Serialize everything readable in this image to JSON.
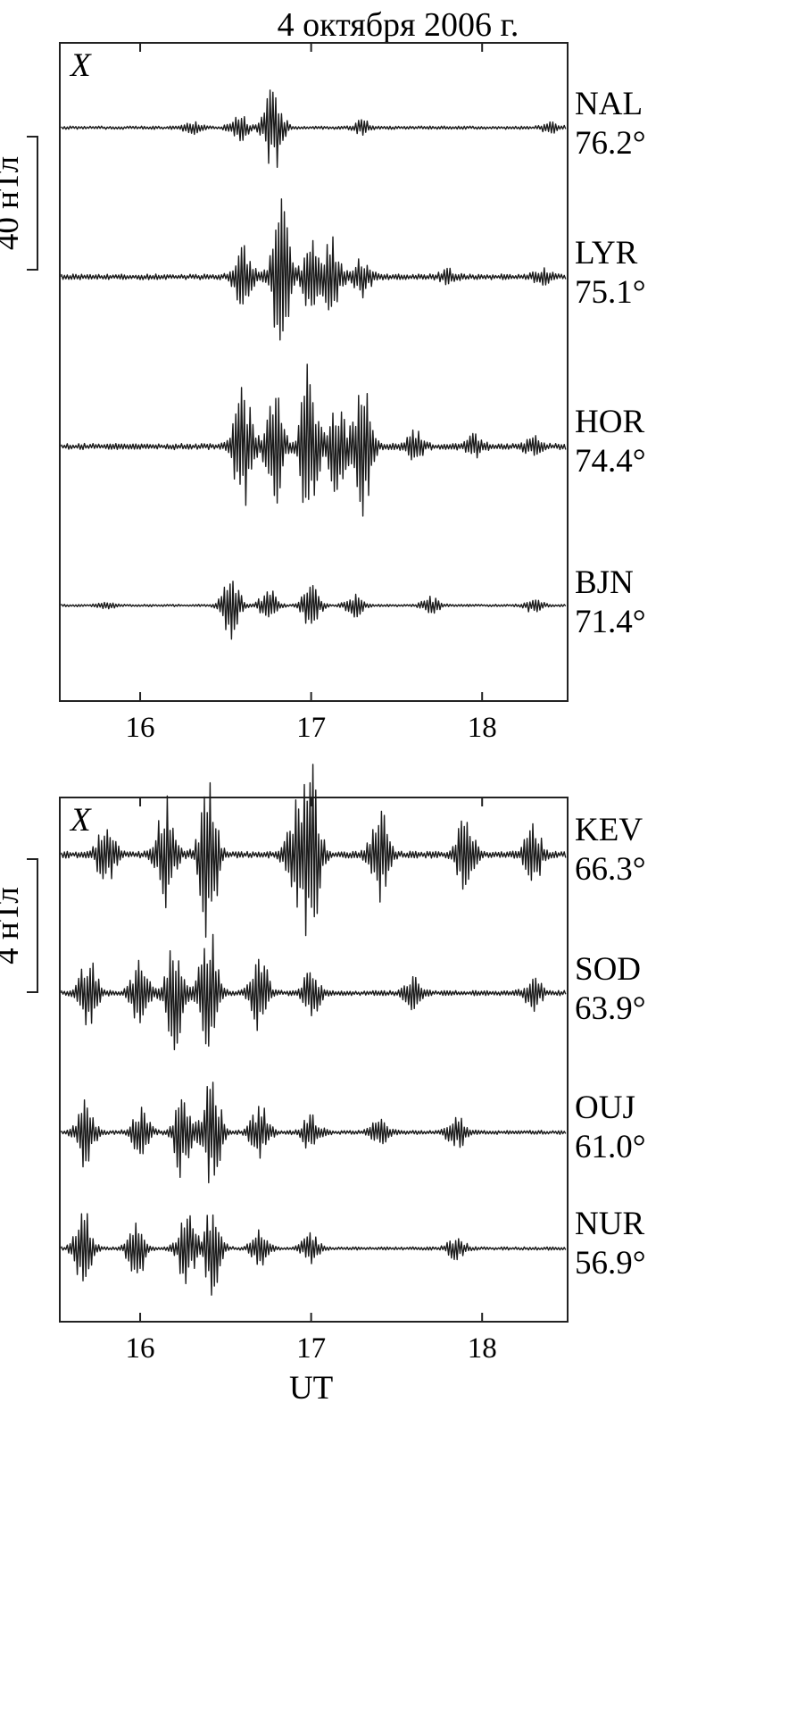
{
  "title": "4 октября 2006 г.",
  "colors": {
    "trace": "#1a1a1a",
    "frame": "#222222",
    "background": "#ffffff"
  },
  "chart_data": [
    {
      "type": "line",
      "component_label": "X",
      "scale_bar_label": "40 нТл",
      "scale_bar_value_nT": 40,
      "xlim": [
        15.53,
        18.5
      ],
      "xticks": [
        16,
        17,
        18
      ],
      "xtick_labels": [
        "16",
        "17",
        "18"
      ],
      "xlabel": "",
      "grid": false,
      "stations": [
        {
          "code": "NAL",
          "latitude": "76.2°",
          "bursts": [
            {
              "t": 16.78,
              "amp_nT": 28
            },
            {
              "t": 16.58,
              "amp_nT": 8
            },
            {
              "t": 16.3,
              "amp_nT": 4
            },
            {
              "t": 17.3,
              "amp_nT": 4
            },
            {
              "t": 18.4,
              "amp_nT": 3
            }
          ]
        },
        {
          "code": "LYR",
          "latitude": "75.1°",
          "bursts": [
            {
              "t": 16.82,
              "amp_nT": 48
            },
            {
              "t": 16.6,
              "amp_nT": 22
            },
            {
              "t": 17.0,
              "amp_nT": 22
            },
            {
              "t": 17.12,
              "amp_nT": 24
            },
            {
              "t": 17.3,
              "amp_nT": 12
            },
            {
              "t": 17.8,
              "amp_nT": 4
            },
            {
              "t": 18.35,
              "amp_nT": 4
            }
          ]
        },
        {
          "code": "HOR",
          "latitude": "74.4°",
          "bursts": [
            {
              "t": 16.6,
              "amp_nT": 40
            },
            {
              "t": 16.78,
              "amp_nT": 38
            },
            {
              "t": 16.99,
              "amp_nT": 52
            },
            {
              "t": 17.15,
              "amp_nT": 30
            },
            {
              "t": 17.3,
              "amp_nT": 42
            },
            {
              "t": 17.6,
              "amp_nT": 10
            },
            {
              "t": 17.95,
              "amp_nT": 6
            },
            {
              "t": 18.3,
              "amp_nT": 5
            }
          ]
        },
        {
          "code": "BJN",
          "latitude": "71.4°",
          "bursts": [
            {
              "t": 16.53,
              "amp_nT": 20
            },
            {
              "t": 16.75,
              "amp_nT": 10
            },
            {
              "t": 17.0,
              "amp_nT": 14
            },
            {
              "t": 17.25,
              "amp_nT": 7
            },
            {
              "t": 17.7,
              "amp_nT": 5
            },
            {
              "t": 18.3,
              "amp_nT": 4
            },
            {
              "t": 15.8,
              "amp_nT": 2
            }
          ]
        }
      ]
    },
    {
      "type": "line",
      "component_label": "X",
      "scale_bar_label": "4 нТл",
      "scale_bar_value_nT": 4,
      "xlim": [
        15.53,
        18.5
      ],
      "xticks": [
        16,
        17,
        18
      ],
      "xtick_labels": [
        "16",
        "17",
        "18"
      ],
      "xlabel": "UT",
      "grid": false,
      "stations": [
        {
          "code": "KEV",
          "latitude": "66.3°",
          "bursts": [
            {
              "t": 16.4,
              "amp_nT": 5.5
            },
            {
              "t": 16.15,
              "amp_nT": 3.5
            },
            {
              "t": 16.9,
              "amp_nT": 3.0
            },
            {
              "t": 17.0,
              "amp_nT": 6.0
            },
            {
              "t": 17.4,
              "amp_nT": 3.0
            },
            {
              "t": 17.9,
              "amp_nT": 2.5
            },
            {
              "t": 15.8,
              "amp_nT": 2.0
            },
            {
              "t": 18.3,
              "amp_nT": 2.0
            }
          ]
        },
        {
          "code": "SOD",
          "latitude": "63.9°",
          "bursts": [
            {
              "t": 16.4,
              "amp_nT": 4.5
            },
            {
              "t": 16.2,
              "amp_nT": 3.5
            },
            {
              "t": 15.7,
              "amp_nT": 2.5
            },
            {
              "t": 16.0,
              "amp_nT": 2.0
            },
            {
              "t": 16.7,
              "amp_nT": 2.5
            },
            {
              "t": 17.0,
              "amp_nT": 1.5
            },
            {
              "t": 17.6,
              "amp_nT": 1.0
            },
            {
              "t": 18.3,
              "amp_nT": 1.0
            }
          ]
        },
        {
          "code": "OUJ",
          "latitude": "61.0°",
          "bursts": [
            {
              "t": 16.42,
              "amp_nT": 3.6
            },
            {
              "t": 16.25,
              "amp_nT": 3.0
            },
            {
              "t": 15.68,
              "amp_nT": 2.2
            },
            {
              "t": 16.0,
              "amp_nT": 1.6
            },
            {
              "t": 16.7,
              "amp_nT": 1.8
            },
            {
              "t": 17.0,
              "amp_nT": 1.2
            },
            {
              "t": 17.85,
              "amp_nT": 1.1
            },
            {
              "t": 17.4,
              "amp_nT": 0.8
            }
          ]
        },
        {
          "code": "NUR",
          "latitude": "56.9°",
          "bursts": [
            {
              "t": 15.67,
              "amp_nT": 2.5
            },
            {
              "t": 15.98,
              "amp_nT": 2.0
            },
            {
              "t": 16.27,
              "amp_nT": 2.3
            },
            {
              "t": 16.42,
              "amp_nT": 2.8
            },
            {
              "t": 16.7,
              "amp_nT": 1.2
            },
            {
              "t": 17.0,
              "amp_nT": 1.0
            },
            {
              "t": 17.85,
              "amp_nT": 0.8
            }
          ]
        }
      ]
    }
  ]
}
